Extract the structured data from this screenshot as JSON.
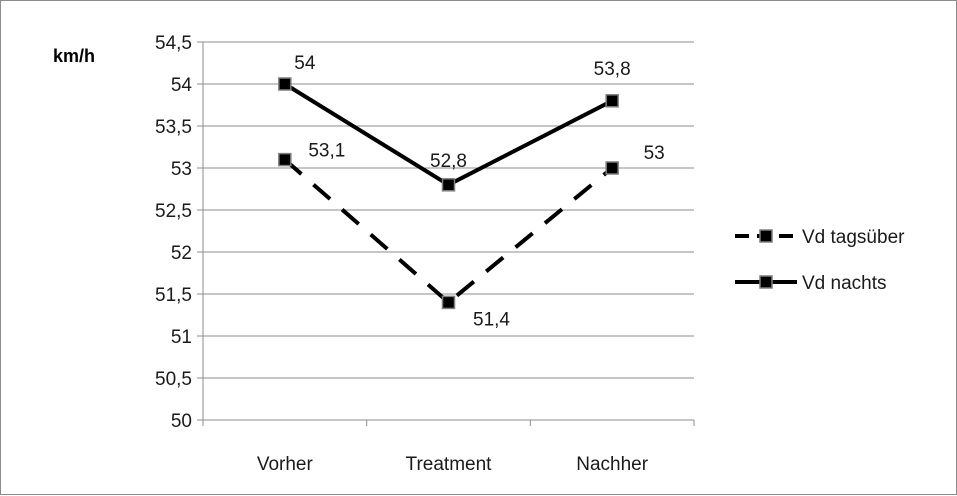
{
  "chart_data": {
    "type": "line",
    "ylabel": "km/h",
    "categories": [
      "Vorher",
      "Treatment",
      "Nachher"
    ],
    "ylim": [
      50,
      54.5
    ],
    "ytick_step": 0.5,
    "ytick_labels": [
      "50",
      "50,5",
      "51",
      "51,5",
      "52",
      "52,5",
      "53",
      "53,5",
      "54",
      "54,5"
    ],
    "grid": "horizontal",
    "legend_position": "right",
    "series": [
      {
        "name": "Vd tagsüber",
        "values": [
          53.1,
          51.4,
          53.0
        ],
        "labels": [
          "53,1",
          "51,4",
          "53"
        ],
        "style": "dashed",
        "color": "#000000"
      },
      {
        "name": "Vd nachts",
        "values": [
          54.0,
          52.8,
          53.8
        ],
        "labels": [
          "54",
          "52,8",
          "53,8"
        ],
        "style": "solid",
        "color": "#000000"
      }
    ]
  }
}
